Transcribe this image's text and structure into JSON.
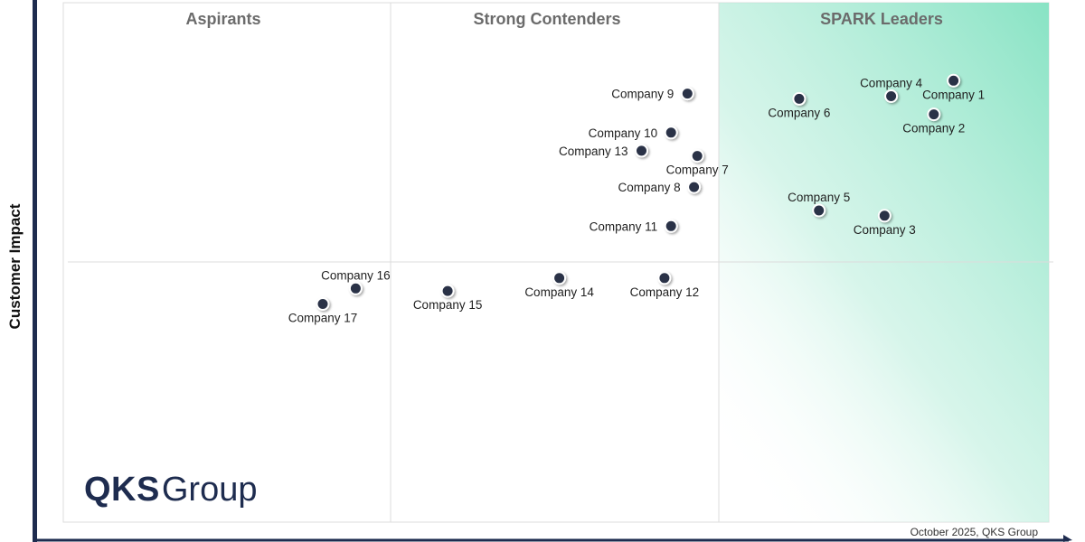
{
  "chart_data": {
    "type": "scatter",
    "title": "",
    "xlabel": "",
    "ylabel": "Customer Impact",
    "xlim": [
      0,
      3
    ],
    "ylim": [
      0,
      2
    ],
    "quadrants": [
      "Aspirants",
      "Strong Contenders",
      "SPARK Leaders"
    ],
    "grid": "quadrant dividers",
    "points": [
      {
        "name": "Company 1",
        "x": 2.71,
        "y": 1.7,
        "label_pos": "below"
      },
      {
        "name": "Company 2",
        "x": 2.65,
        "y": 1.57,
        "label_pos": "below"
      },
      {
        "name": "Company 3",
        "x": 2.5,
        "y": 1.18,
        "label_pos": "below"
      },
      {
        "name": "Company 4",
        "x": 2.52,
        "y": 1.64,
        "label_pos": "above"
      },
      {
        "name": "Company 5",
        "x": 2.3,
        "y": 1.2,
        "label_pos": "above"
      },
      {
        "name": "Company 6",
        "x": 2.24,
        "y": 1.63,
        "label_pos": "below"
      },
      {
        "name": "Company 7",
        "x": 1.93,
        "y": 1.41,
        "label_pos": "below"
      },
      {
        "name": "Company 8",
        "x": 1.92,
        "y": 1.29,
        "label_pos": "left"
      },
      {
        "name": "Company 9",
        "x": 1.9,
        "y": 1.65,
        "label_pos": "left"
      },
      {
        "name": "Company 10",
        "x": 1.85,
        "y": 1.5,
        "label_pos": "left"
      },
      {
        "name": "Company 11",
        "x": 1.85,
        "y": 1.14,
        "label_pos": "left"
      },
      {
        "name": "Company 12",
        "x": 1.83,
        "y": 0.94,
        "label_pos": "below"
      },
      {
        "name": "Company 13",
        "x": 1.76,
        "y": 1.43,
        "label_pos": "left"
      },
      {
        "name": "Company 14",
        "x": 1.51,
        "y": 0.94,
        "label_pos": "below"
      },
      {
        "name": "Company 15",
        "x": 1.17,
        "y": 0.89,
        "label_pos": "below"
      },
      {
        "name": "Company 16",
        "x": 0.89,
        "y": 0.9,
        "label_pos": "above"
      },
      {
        "name": "Company 17",
        "x": 0.79,
        "y": 0.84,
        "label_pos": "below"
      }
    ]
  },
  "colors": {
    "point": "#2b3347",
    "leader_gradient": "#88e3c4",
    "frame": "#1e2c4f"
  },
  "logo": {
    "bold": "QKS",
    "regular": "Group"
  },
  "footer": "October 2025, QKS Group"
}
